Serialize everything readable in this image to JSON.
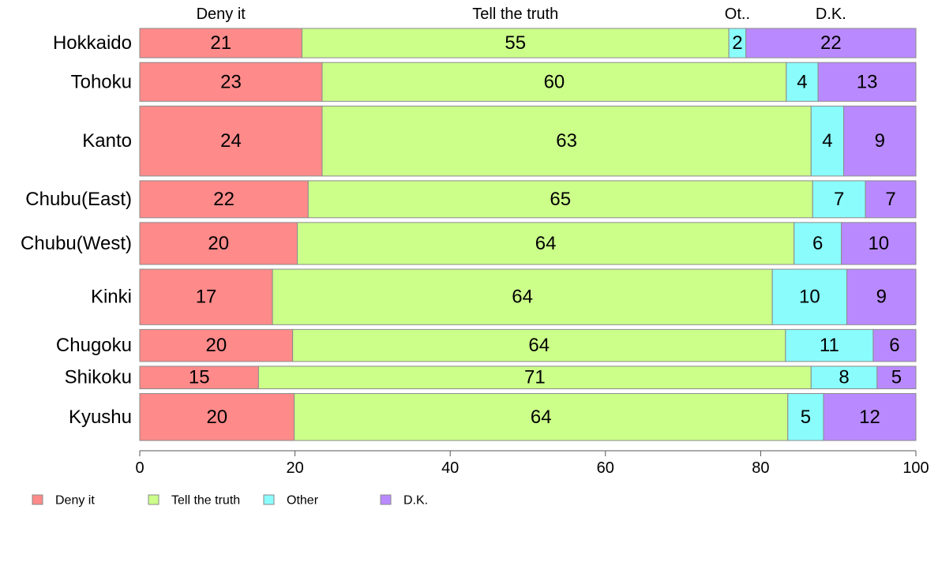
{
  "chart_data": {
    "type": "bar",
    "orientation": "horizontal",
    "stacked": true,
    "categories": [
      "Hokkaido",
      "Tohoku",
      "Kanto",
      "Chubu(East)",
      "Chubu(West)",
      "Kinki",
      "Chugoku",
      "Shikoku",
      "Kyushu"
    ],
    "series": [
      {
        "name": "Deny it",
        "color": "#ff8a8a",
        "values": [
          21,
          23,
          24,
          22,
          20,
          17,
          20,
          15,
          20
        ]
      },
      {
        "name": "Tell the truth",
        "color": "#ccff8a",
        "values": [
          55,
          60,
          63,
          65,
          64,
          64,
          64,
          71,
          64
        ]
      },
      {
        "name": "Other",
        "color": "#8afcfc",
        "values": [
          2,
          4,
          4,
          7,
          6,
          10,
          11,
          8,
          5
        ]
      },
      {
        "name": "D.K.",
        "color": "#b98aff",
        "values": [
          22,
          13,
          9,
          7,
          10,
          9,
          6,
          5,
          12
        ]
      }
    ],
    "exact_shares": [
      [
        20.9,
        55.0,
        2.2,
        21.9
      ],
      [
        23.5,
        59.8,
        4.1,
        12.6
      ],
      [
        23.5,
        63.0,
        4.2,
        9.3
      ],
      [
        21.7,
        65.0,
        6.8,
        6.5
      ],
      [
        20.3,
        64.0,
        6.1,
        9.6
      ],
      [
        17.1,
        64.4,
        9.6,
        8.9
      ],
      [
        19.7,
        63.5,
        11.3,
        5.5
      ],
      [
        15.3,
        71.2,
        8.5,
        5.0
      ],
      [
        19.9,
        63.6,
        4.6,
        11.9
      ]
    ],
    "row_weights": [
      0.65,
      0.86,
      1.55,
      0.82,
      0.93,
      1.23,
      0.71,
      0.5,
      1.04
    ],
    "top_labels": [
      "Deny it",
      "Tell the truth",
      "Ot..",
      "D.K."
    ],
    "x_ticks": [
      0,
      20,
      40,
      60,
      80,
      100
    ],
    "xlim": [
      0,
      100
    ],
    "title": "",
    "xlabel": "",
    "ylabel": "",
    "grid": false,
    "legend_position": "bottom-left"
  }
}
